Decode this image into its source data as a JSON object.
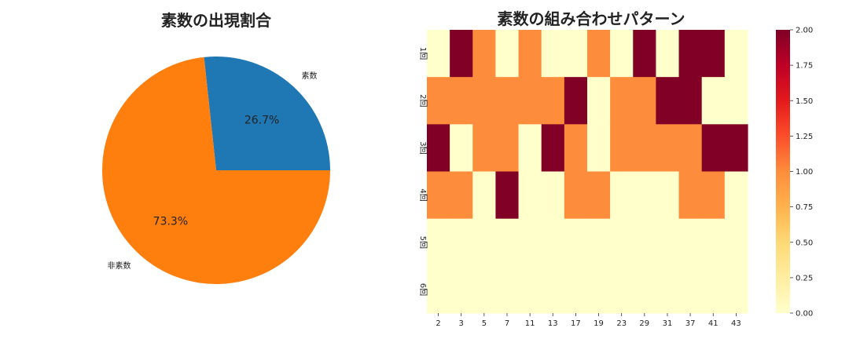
{
  "chart_data": [
    {
      "type": "pie",
      "title": "素数の出現割合",
      "labels": [
        "素数",
        "非素数"
      ],
      "values": [
        26.7,
        73.3
      ],
      "value_labels": [
        "26.7%",
        "73.3%"
      ],
      "colors": [
        "#1f77b4",
        "#ff7f0e"
      ]
    },
    {
      "type": "heatmap",
      "title": "素数の組み合わせパターン",
      "x_categories": [
        "2",
        "3",
        "5",
        "7",
        "11",
        "13",
        "17",
        "19",
        "23",
        "29",
        "31",
        "37",
        "41",
        "43"
      ],
      "y_categories": [
        "1回",
        "2回",
        "3回",
        "4回",
        "5回",
        "6回"
      ],
      "values": [
        [
          0,
          2,
          1,
          0,
          1,
          0,
          0,
          1,
          0,
          2,
          0,
          2,
          2,
          0
        ],
        [
          1,
          1,
          1,
          1,
          1,
          1,
          2,
          0,
          1,
          1,
          2,
          2,
          0,
          0
        ],
        [
          2,
          0,
          1,
          1,
          0,
          2,
          1,
          0,
          1,
          1,
          1,
          1,
          2,
          2
        ],
        [
          1,
          1,
          0,
          2,
          0,
          0,
          1,
          1,
          0,
          0,
          0,
          1,
          1,
          0
        ],
        [
          0,
          0,
          0,
          0,
          0,
          0,
          0,
          0,
          0,
          0,
          0,
          0,
          0,
          0
        ],
        [
          0,
          0,
          0,
          0,
          0,
          0,
          0,
          0,
          0,
          0,
          0,
          0,
          0,
          0
        ]
      ],
      "colormap": "YlOrRd",
      "color_scale": {
        "min": 0,
        "max": 2
      },
      "colorbar_ticks": [
        "0.00",
        "0.25",
        "0.50",
        "0.75",
        "1.00",
        "1.25",
        "1.50",
        "1.75",
        "2.00"
      ]
    }
  ]
}
